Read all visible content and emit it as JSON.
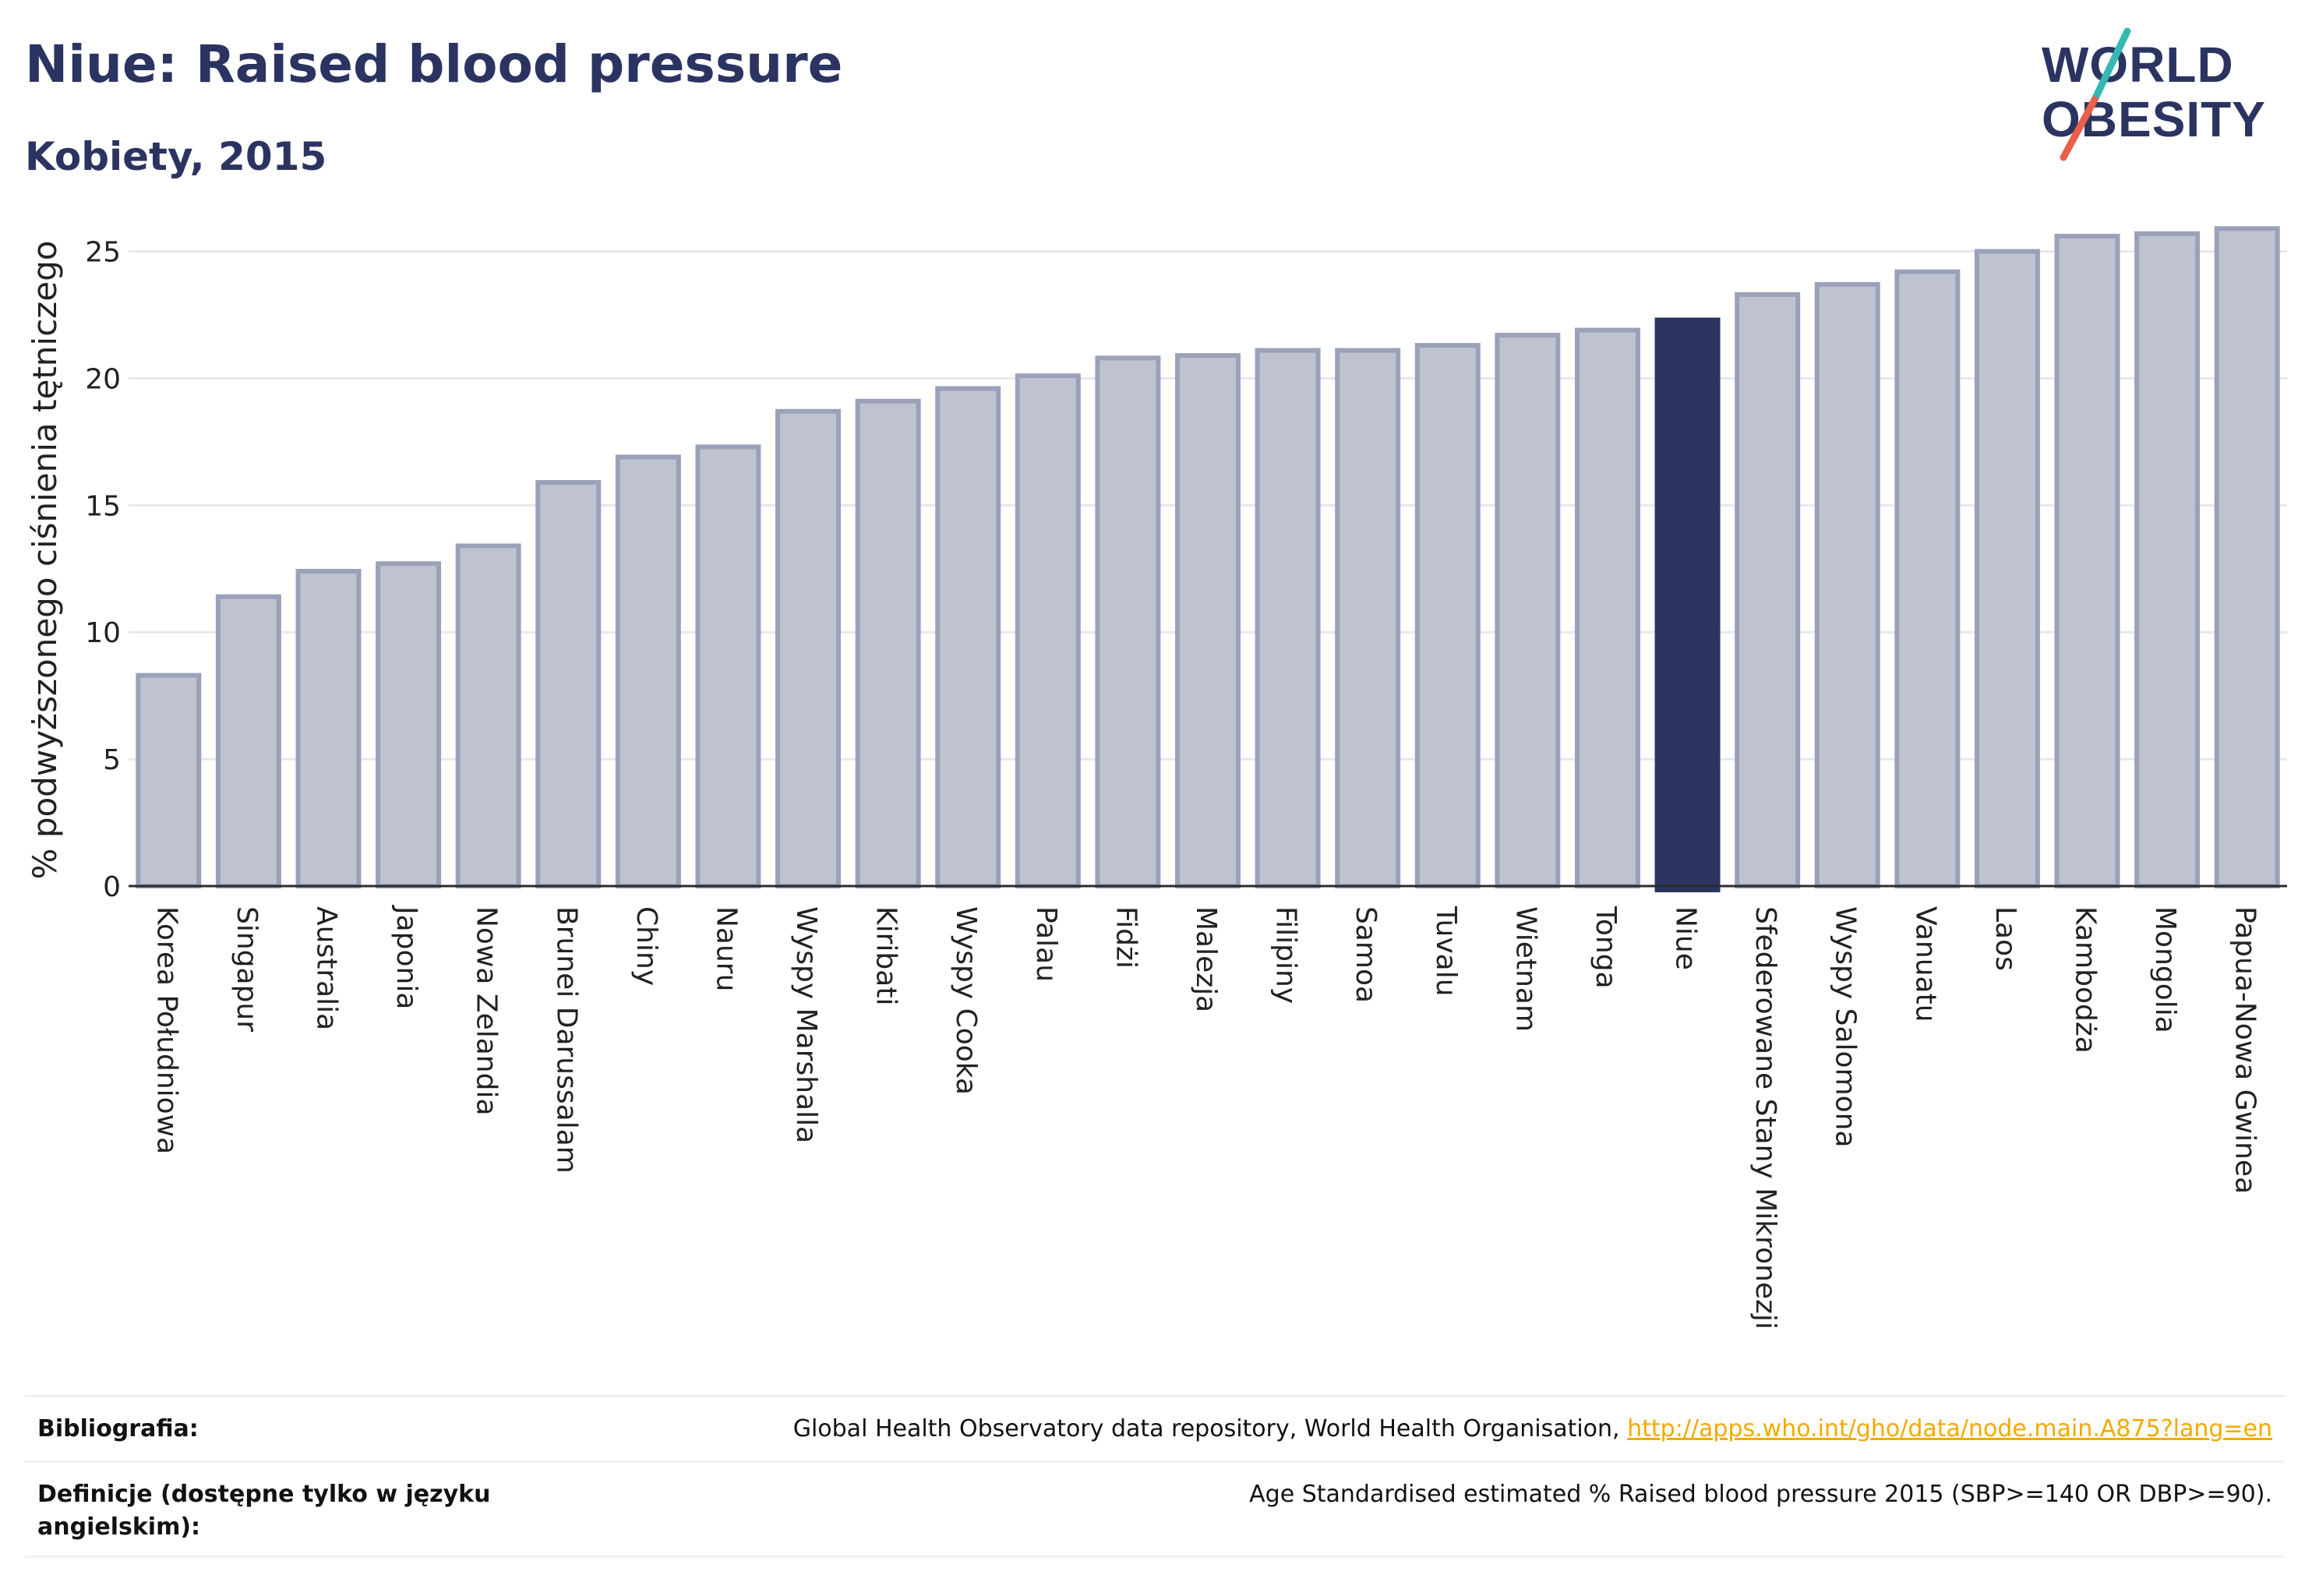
{
  "header": {
    "title": "Niue: Raised blood pressure",
    "subtitle": "Kobiety, 2015"
  },
  "logo": {
    "line1": "WORLD",
    "line2": "OBESITY",
    "accent_colors": [
      "#37b7b1",
      "#e8604c"
    ]
  },
  "chart_data": {
    "type": "bar",
    "ylabel": "% podwyższonego ciśnienia tętniczego",
    "ylim": [
      0,
      26
    ],
    "yticks": [
      0,
      5,
      10,
      15,
      20,
      25
    ],
    "grid": true,
    "highlight": "Niue",
    "colors": {
      "bar": "#bfc3d0",
      "bar_stroke": "#9aa1b9",
      "highlight": "#2b3461"
    },
    "categories": [
      "Korea Południowa",
      "Singapur",
      "Australia",
      "Japonia",
      "Nowa Zelandia",
      "Brunei Darussalam",
      "Chiny",
      "Nauru",
      "Wyspy Marshalla",
      "Kiribati",
      "Wyspy Cooka",
      "Palau",
      "Fidżi",
      "Malezja",
      "Filipiny",
      "Samoa",
      "Tuvalu",
      "Wietnam",
      "Tonga",
      "Niue",
      "Sfederowane Stany Mikronezji",
      "Wyspy Salomona",
      "Vanuatu",
      "Laos",
      "Kambodża",
      "Mongolia",
      "Papua-Nowa Gwinea"
    ],
    "values": [
      8.3,
      11.4,
      12.4,
      12.7,
      13.4,
      15.9,
      16.9,
      17.3,
      18.7,
      19.1,
      19.6,
      20.1,
      20.8,
      20.9,
      21.1,
      21.1,
      21.3,
      21.7,
      21.9,
      22.3,
      23.3,
      23.7,
      24.2,
      25.0,
      25.6,
      25.7,
      25.9
    ]
  },
  "footer": {
    "bibliography_label": "Bibliografia:",
    "bibliography_text": "Global Health Observatory data repository, World Health Organisation,",
    "bibliography_link": "http://apps.who.int/gho/data/node.main.A875?lang=en",
    "definitions_label": "Definicje (dostępne tylko w języku angielskim):",
    "definitions_text": "Age Standardised estimated % Raised blood pressure 2015 (SBP>=140 OR DBP>=90)."
  }
}
